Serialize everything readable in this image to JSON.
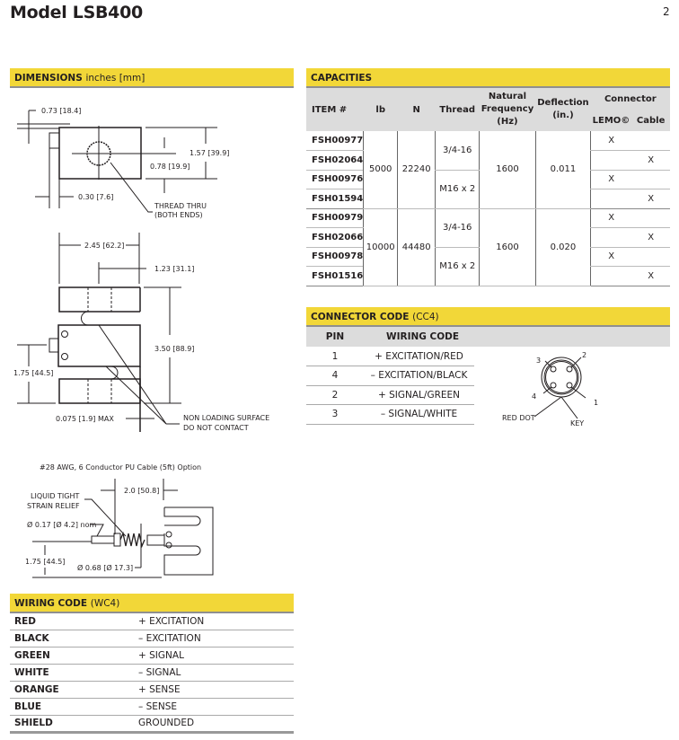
{
  "page": {
    "title": "Model LSB400",
    "number": "2"
  },
  "colors": {
    "section_bar": "#f2d738",
    "table_header": "#dcdcdc"
  },
  "dimensions": {
    "title": "DIMENSIONS",
    "units": "inches [mm]",
    "labels": {
      "d073": "0.73 [18.4]",
      "d157": "1.57 [39.9]",
      "d078": "0.78 [19.9]",
      "d030": "0.30 [7.6]",
      "thread1": "THREAD THRU",
      "thread2": "(BOTH ENDS)",
      "d245": "2.45 [62.2]",
      "d123": "1.23 [31.1]",
      "d350": "3.50 [88.9]",
      "d175": "1.75 [44.5]",
      "d075": "0.075 [1.9] MAX",
      "nonload1": "NON LOADING SURFACE",
      "nonload2": "DO NOT CONTACT"
    },
    "cable": {
      "caption": "#28 AWG, 6 Conductor PU Cable (5ft) Option",
      "d20": "2.0 [50.8]",
      "relief1": "LIQUID TIGHT",
      "relief2": "STRAIN RELIEF",
      "d017": "Ø 0.17 [Ø 4.2] nom",
      "d175": "1.75 [44.5]",
      "d068": "Ø 0.68 [Ø 17.3]"
    }
  },
  "capacities": {
    "title": "CAPACITIES",
    "headers": {
      "item": "ITEM #",
      "lb": "lb",
      "n": "N",
      "thread": "Thread",
      "freq1": "Natural",
      "freq2": "Frequency",
      "freq3": "(Hz)",
      "defl1": "Deflection",
      "defl2": "(in.)",
      "connector": "Connector",
      "lemo": "LEMO©",
      "cable": "Cable"
    },
    "groups": [
      {
        "lb": "5000",
        "n": "22240",
        "freq": "1600",
        "deflection": "0.011",
        "threads": [
          "3/4-16",
          "M16 x 2"
        ],
        "rows": [
          {
            "item": "FSH00977",
            "lemo": "X",
            "cable": ""
          },
          {
            "item": "FSH02064",
            "lemo": "",
            "cable": "X"
          },
          {
            "item": "FSH00976",
            "lemo": "X",
            "cable": ""
          },
          {
            "item": "FSH01594",
            "lemo": "",
            "cable": "X"
          }
        ]
      },
      {
        "lb": "10000",
        "n": "44480",
        "freq": "1600",
        "deflection": "0.020",
        "threads": [
          "3/4-16",
          "M16 x 2"
        ],
        "rows": [
          {
            "item": "FSH00979",
            "lemo": "X",
            "cable": ""
          },
          {
            "item": "FSH02066",
            "lemo": "",
            "cable": "X"
          },
          {
            "item": "FSH00978",
            "lemo": "X",
            "cable": ""
          },
          {
            "item": "FSH01516",
            "lemo": "",
            "cable": "X"
          }
        ]
      }
    ]
  },
  "connector_code": {
    "title": "CONNECTOR CODE",
    "code": "(CC4)",
    "headers": {
      "pin": "PIN",
      "wiring": "WIRING CODE"
    },
    "rows": [
      {
        "pin": "1",
        "wiring": "+ EXCITATION/RED"
      },
      {
        "pin": "4",
        "wiring": "– EXCITATION/BLACK"
      },
      {
        "pin": "2",
        "wiring": "+ SIGNAL/GREEN"
      },
      {
        "pin": "3",
        "wiring": "– SIGNAL/WHITE"
      }
    ],
    "diagram": {
      "p1": "1",
      "p2": "2",
      "p3": "3",
      "p4": "4",
      "red_dot": "RED DOT",
      "key": "KEY"
    }
  },
  "wiring_code": {
    "title": "WIRING CODE",
    "code": "(WC4)",
    "rows": [
      {
        "color": "RED",
        "function": "+ EXCITATION"
      },
      {
        "color": "BLACK",
        "function": "– EXCITATION"
      },
      {
        "color": "GREEN",
        "function": "+ SIGNAL"
      },
      {
        "color": "WHITE",
        "function": "– SIGNAL"
      },
      {
        "color": "ORANGE",
        "function": "+ SENSE"
      },
      {
        "color": "BLUE",
        "function": "– SENSE"
      },
      {
        "color": "SHIELD",
        "function": "GROUNDED"
      }
    ]
  }
}
